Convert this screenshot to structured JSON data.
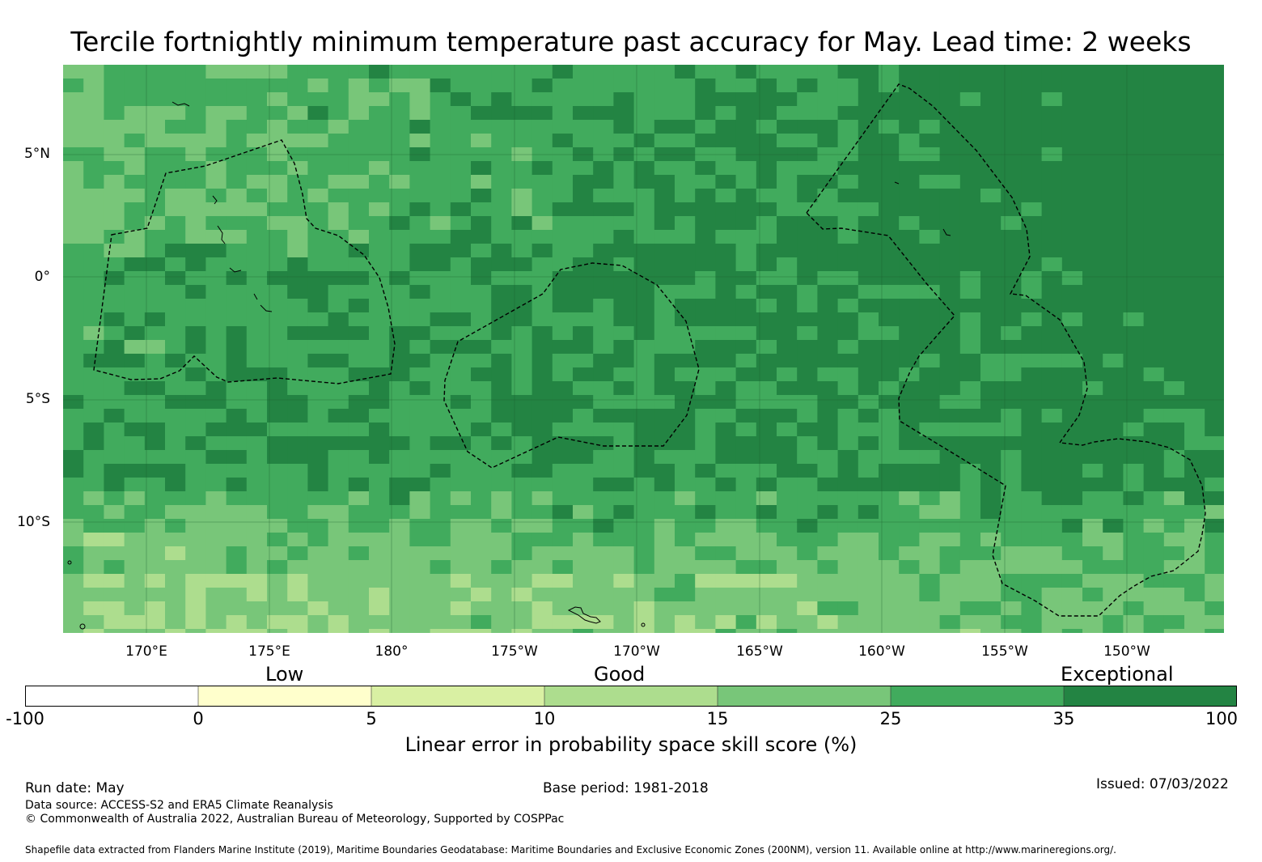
{
  "title": "Tercile fortnightly minimum temperature past accuracy for May. Lead time: 2 weeks",
  "map": {
    "lat_range": [
      -14.5,
      8.7
    ],
    "lon_range": [
      166.6,
      213.9
    ],
    "lat_ticks": [
      "5°N",
      "0°",
      "5°S",
      "10°S"
    ],
    "lon_ticks": [
      "170°E",
      "175°E",
      "180°",
      "175°W",
      "170°W",
      "165°W",
      "160°W",
      "155°W",
      "150°W"
    ],
    "regions_note": "Exclusive Economic Zone boundaries (dashed)",
    "shading_class_colors": [
      "#ffffcc",
      "#d9f0a3",
      "#addd8e",
      "#78c679",
      "#41ab5d",
      "#238443"
    ]
  },
  "legend": {
    "categories": [
      {
        "label": "Low"
      },
      {
        "label": "Good"
      },
      {
        "label": "Exceptional"
      }
    ],
    "bins": [
      {
        "from": "-100",
        "to": "0",
        "color": "#ffffff"
      },
      {
        "from": "0",
        "to": "5",
        "color": "#ffffcc"
      },
      {
        "from": "5",
        "to": "10",
        "color": "#d9f0a3"
      },
      {
        "from": "10",
        "to": "15",
        "color": "#addd8e"
      },
      {
        "from": "15",
        "to": "25",
        "color": "#78c679"
      },
      {
        "from": "25",
        "to": "35",
        "color": "#41ab5d"
      },
      {
        "from": "35",
        "to": "100",
        "color": "#238443"
      }
    ],
    "ticks": [
      "-100",
      "0",
      "5",
      "10",
      "15",
      "25",
      "35",
      "100"
    ],
    "label": "Linear error in probability space skill score (%)"
  },
  "footer": {
    "run_date": "Run date: May",
    "base_period": "Base period: 1981-2018",
    "issued": "Issued: 07/03/2022",
    "data_source": "Data source: ACCESS-S2 and ERA5 Climate Reanalysis",
    "copyright": "© Commonwealth of Australia 2022, Australian Bureau of Meteorology, Supported by COSPPac",
    "shapefile": "Shapefile data extracted from Flanders Marine Institute (2019), Maritime Boundaries Geodatabase: Maritime Boundaries and Exclusive Economic Zones (200NM), version 11. Available online at http://www.marineregions.org/."
  }
}
